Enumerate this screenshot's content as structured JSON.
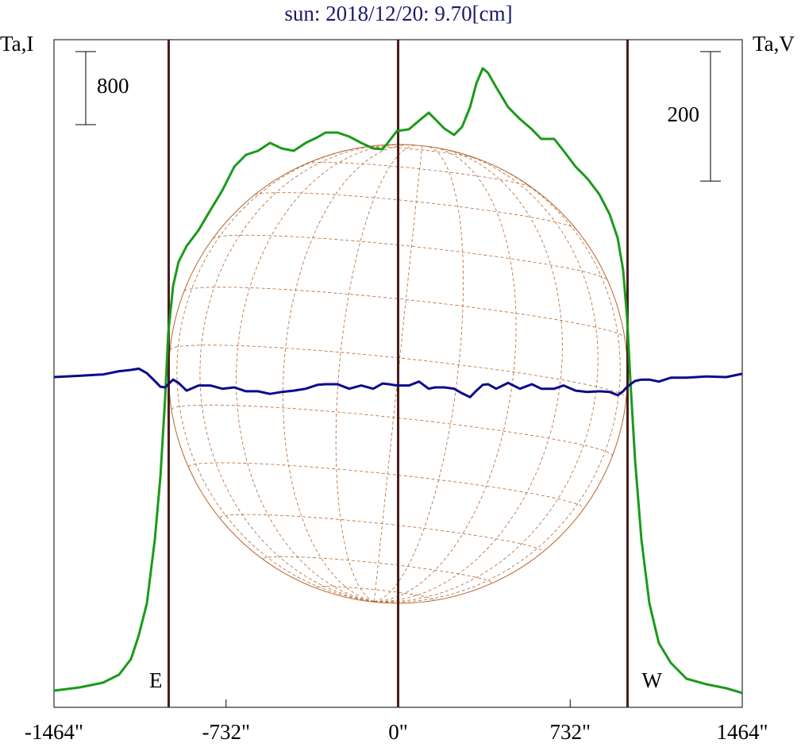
{
  "chart_data": {
    "type": "line",
    "title": "sun: 2018/12/20: 9.70[cm]",
    "y_label": "Ta,I",
    "y2_label": "Ta,V",
    "x": [
      -1464,
      -1356,
      -1255,
      -1187,
      -1136,
      -1103,
      -1069,
      -1035,
      -1011,
      -991,
      -978,
      -957,
      -934,
      -900,
      -849,
      -799,
      -748,
      -697,
      -647,
      -596,
      -545,
      -495,
      -444,
      -393,
      -343,
      -309,
      -258,
      -208,
      -157,
      -106,
      -66,
      -39,
      -5,
      46,
      89,
      130,
      157,
      197,
      238,
      272,
      306,
      333,
      360,
      383,
      417,
      468,
      518,
      569,
      609,
      664,
      704,
      755,
      805,
      856,
      900,
      934,
      957,
      974,
      988,
      1008,
      1035,
      1069,
      1109,
      1160,
      1227,
      1312,
      1396,
      1464
    ],
    "series": [
      {
        "name": "I",
        "color": "#1a9a1a",
        "axis": "y",
        "values": [
          183,
          217,
          270,
          357,
          530,
          791,
          1139,
          1835,
          2531,
          3400,
          4096,
          4618,
          4878,
          5052,
          5226,
          5444,
          5661,
          5922,
          6052,
          6096,
          6183,
          6122,
          6096,
          6183,
          6244,
          6296,
          6296,
          6252,
          6183,
          6122,
          6113,
          6200,
          6313,
          6331,
          6426,
          6513,
          6444,
          6339,
          6270,
          6357,
          6574,
          6835,
          7000,
          6948,
          6792,
          6574,
          6444,
          6331,
          6226,
          6226,
          6096,
          5922,
          5792,
          5618,
          5400,
          5139,
          4791,
          4270,
          3574,
          2704,
          1835,
          1139,
          704,
          487,
          313,
          252,
          209,
          157
        ]
      },
      {
        "name": "V",
        "color": "#0a0a8a",
        "axis": "y2",
        "values": [
          0,
          2,
          4,
          9,
          11,
          13,
          6,
          -6,
          -15,
          -16,
          -11,
          -4,
          -9,
          -21,
          -13,
          -13,
          -18,
          -16,
          -22,
          -22,
          -26,
          -23,
          -21,
          -18,
          -12,
          -11,
          -11,
          -18,
          -13,
          -18,
          -10,
          -11,
          -13,
          -13,
          -7,
          -18,
          -16,
          -16,
          -18,
          -25,
          -31,
          -21,
          -12,
          -11,
          -18,
          -9,
          -18,
          -11,
          -18,
          -18,
          -13,
          -21,
          -23,
          -22,
          -23,
          -28,
          -22,
          -15,
          -11,
          -6,
          -4,
          -4,
          -7,
          -1,
          -1,
          1,
          0,
          5
        ]
      }
    ],
    "xlim": [
      -1464,
      1464
    ],
    "xticks": [
      {
        "value": -1464,
        "label": "-1464\""
      },
      {
        "value": -732,
        "label": "-732\""
      },
      {
        "value": 0,
        "label": "0\""
      },
      {
        "value": 732,
        "label": "732\""
      },
      {
        "value": 1464,
        "label": "1464\""
      }
    ],
    "ylim": [
      0,
      7313
    ],
    "y2lim": [
      -510,
      521
    ],
    "scale_bars": [
      {
        "value": 800,
        "axis": "y"
      },
      {
        "value": 200,
        "axis": "y2"
      }
    ],
    "vlines": [
      {
        "x": -976,
        "label": "E"
      },
      {
        "x": 0
      },
      {
        "x": 976,
        "label": "W"
      }
    ],
    "vline_color": "#4a1c1c",
    "disk_radius": 976,
    "disk_color": "#b5652f"
  }
}
